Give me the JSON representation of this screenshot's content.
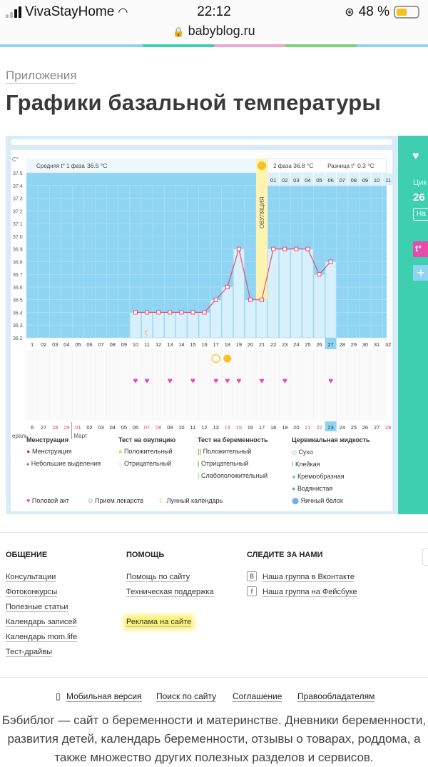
{
  "status": {
    "carrier": "VivaStayHome",
    "time": "22:12",
    "battery": "48 %",
    "url": "babyblog.ru"
  },
  "colors": {
    "teal": "#3ecfb0",
    "chart_blue": "#8fd5f3",
    "pink": "#e94bab",
    "ovulation": "#fff3b0"
  },
  "page": {
    "breadcrumb": "Приложения",
    "title": "Графики базальной температуры"
  },
  "chart": {
    "unit": "C°",
    "phase1": "Средняя t° 1 фаза",
    "phase1_val": "36.5 °C",
    "phase2": "2 фаза",
    "phase2_val": "36.8 °C",
    "diff": "Разница t°",
    "diff_val": "0.3 °C",
    "ovulation": "ОВУЛЯЦИЯ",
    "y_ticks": [
      "37.5",
      "37.4",
      "37.3",
      "37.2",
      "37.1",
      "37.0",
      "36.9",
      "36.8",
      "36.7",
      "36.6",
      "36.5",
      "36.4",
      "36.3",
      "36.2"
    ],
    "phase2_days": [
      "01",
      "02",
      "03",
      "04",
      "05",
      "06",
      "07",
      "08",
      "09",
      "10",
      "11"
    ],
    "cycle_days": [
      "1",
      "02",
      "03",
      "04",
      "05",
      "06",
      "07",
      "08",
      "09",
      "10",
      "11",
      "12",
      "13",
      "14",
      "15",
      "16",
      "17",
      "18",
      "19",
      "20",
      "21",
      "22",
      "23",
      "24",
      "25",
      "26",
      "27",
      "28",
      "29",
      "30",
      "31",
      "32"
    ],
    "date_days": [
      "6",
      "27",
      "28",
      "29",
      "01",
      "02",
      "03",
      "04",
      "05",
      "06",
      "07",
      "08",
      "09",
      "10",
      "11",
      "12",
      "13",
      "14",
      "15",
      "16",
      "17",
      "18",
      "19",
      "20",
      "21",
      "22",
      "23",
      "24",
      "25",
      "26",
      "27",
      "28"
    ],
    "months": [
      "ераль",
      "Март"
    ],
    "chart_data": {
      "type": "line",
      "x": [
        10,
        11,
        12,
        13,
        14,
        15,
        16,
        17,
        18,
        19,
        20,
        21,
        22,
        23,
        24,
        25,
        26,
        27
      ],
      "y": [
        36.4,
        36.4,
        36.4,
        36.4,
        36.4,
        36.4,
        36.4,
        36.5,
        36.6,
        36.9,
        36.5,
        36.5,
        36.9,
        36.9,
        36.9,
        36.9,
        36.7,
        36.8
      ],
      "ylim": [
        36.2,
        37.5
      ]
    },
    "pos_test_day": 18,
    "neg_test_day": 17,
    "moon_day": 11,
    "sex_days": [
      10,
      11,
      13,
      15,
      17,
      18,
      19,
      21,
      23,
      27
    ]
  },
  "legend": {
    "menstr_head": "Менструация",
    "menstr1": "Менструация",
    "menstr2": "Небольшие выделения",
    "ovtest_head": "Тест на овуляцию",
    "ov_pos": "Положительный",
    "ov_neg": "Отрицательный",
    "preg_head": "Тест на беременность",
    "preg_pos": "Положительный",
    "preg_neg": "Отрицательный",
    "preg_weak": "Слабоположительный",
    "cerv_head": "Цервикальная жидкость",
    "c1": "Сухо",
    "c2": "Клейкая",
    "c3": "Кремообразная",
    "c4": "Водянистая",
    "c5": "Яичный белок",
    "sex": "Половой акт",
    "meds": "Прием лекарств",
    "moon": "Лунный календарь"
  },
  "side": {
    "label1": "Цик",
    "num": "26",
    "btn": "На"
  },
  "footer": {
    "col1_head": "ОБЩЕНИЕ",
    "col1": [
      "Консультации",
      "Фотоконкурсы",
      "Полезные статьи",
      "Календарь записей",
      "Календарь mom.life",
      "Тест-драйвы"
    ],
    "col2_head": "ПОМОЩЬ",
    "col2": [
      "Помощь по сайту",
      "Техническая поддержка",
      "Реклама на сайте"
    ],
    "col3_head": "СЛЕДИТЕ ЗА НАМИ",
    "vk": "Наша группа в Вконтакте",
    "fb": "Наша группа на Фейсбуке",
    "links": [
      "Мобильная версия",
      "Поиск по сайту",
      "Соглашение",
      "Правообладателям"
    ],
    "desc": "Бэбиблог — сайт о беременности и материнстве. Дневники беременности, развития детей, календарь беременности, отзывы о товарах, роддома, а также множество других полезных разделов и сервисов."
  }
}
